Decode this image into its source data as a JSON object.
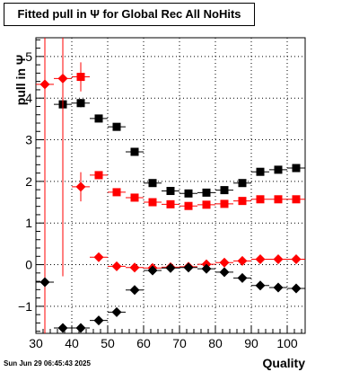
{
  "title": "Fitted pull in  Ψ  for Global Rec All NoHits",
  "timestamp": "Sun Jun 29 06:45:43 2025",
  "chart_data": {
    "type": "scatter",
    "xlabel": "Quality",
    "ylabel": "pull in  Ψ",
    "xlim": [
      30,
      105
    ],
    "ylim": [
      -1.65,
      5.45
    ],
    "grid": true,
    "xticks": [
      30,
      40,
      50,
      60,
      70,
      80,
      90,
      100
    ],
    "yticks": [
      -1,
      0,
      1,
      2,
      3,
      4,
      5
    ],
    "x_errors": 2.5,
    "series": [
      {
        "marker": "square",
        "color": "#000000",
        "x": [
          37.5,
          42.5,
          47.5,
          52.5,
          57.5,
          62.5,
          67.5,
          72.5,
          77.5,
          82.5,
          87.5,
          92.5,
          97.5,
          102.5
        ],
        "y": [
          3.85,
          3.88,
          3.51,
          3.31,
          2.71,
          1.96,
          1.77,
          1.71,
          1.73,
          1.79,
          1.96,
          2.23,
          2.28,
          2.32
        ],
        "yerr": [
          0.05,
          0.1,
          0.05,
          0.05,
          0.05,
          0.05,
          0.05,
          0.04,
          0.04,
          0.04,
          0.04,
          0.04,
          0.04,
          0.04
        ]
      },
      {
        "marker": "square",
        "color": "#ff0000",
        "x": [
          42.5,
          47.5,
          52.5,
          57.5,
          62.5,
          67.5,
          72.5,
          77.5,
          82.5,
          87.5,
          92.5,
          97.5,
          102.5
        ],
        "y": [
          4.51,
          2.15,
          1.74,
          1.61,
          1.5,
          1.45,
          1.41,
          1.44,
          1.46,
          1.53,
          1.57,
          1.57,
          1.57
        ],
        "yerr": [
          0.35,
          0.06,
          0.05,
          0.04,
          0.04,
          0.03,
          0.03,
          0.03,
          0.03,
          0.03,
          0.03,
          0.03,
          0.03
        ]
      },
      {
        "marker": "diamond",
        "color": "#ff0000",
        "x": [
          32.5,
          37.5,
          42.5,
          47.5,
          52.5,
          57.5,
          62.5,
          67.5,
          72.5,
          77.5,
          82.5,
          87.5,
          92.5,
          97.5,
          102.5
        ],
        "y": [
          4.33,
          4.47,
          1.87,
          0.18,
          -0.04,
          -0.07,
          -0.08,
          -0.06,
          -0.05,
          0.01,
          0.05,
          0.09,
          0.13,
          0.13,
          0.13
        ],
        "yerr": [
          6.2,
          4.75,
          0.35,
          0.05,
          0.03,
          0.02,
          0.02,
          0.02,
          0.02,
          0.02,
          0.02,
          0.02,
          0.02,
          0.02,
          0.02
        ]
      },
      {
        "marker": "diamond",
        "color": "#000000",
        "x": [
          32.5,
          37.5,
          42.5,
          47.5,
          52.5,
          57.5,
          62.5,
          67.5,
          72.5,
          77.5,
          82.5,
          87.5,
          92.5,
          97.5,
          102.5
        ],
        "y": [
          -0.42,
          -1.52,
          -1.52,
          -1.34,
          -1.14,
          -0.61,
          -0.14,
          -0.08,
          -0.07,
          -0.1,
          -0.18,
          -0.32,
          -0.5,
          -0.55,
          -0.57
        ],
        "yerr": [
          0.1,
          0.1,
          0.1,
          0.05,
          0.04,
          0.04,
          0.03,
          0.03,
          0.03,
          0.03,
          0.03,
          0.03,
          0.03,
          0.03,
          0.03
        ]
      }
    ]
  }
}
